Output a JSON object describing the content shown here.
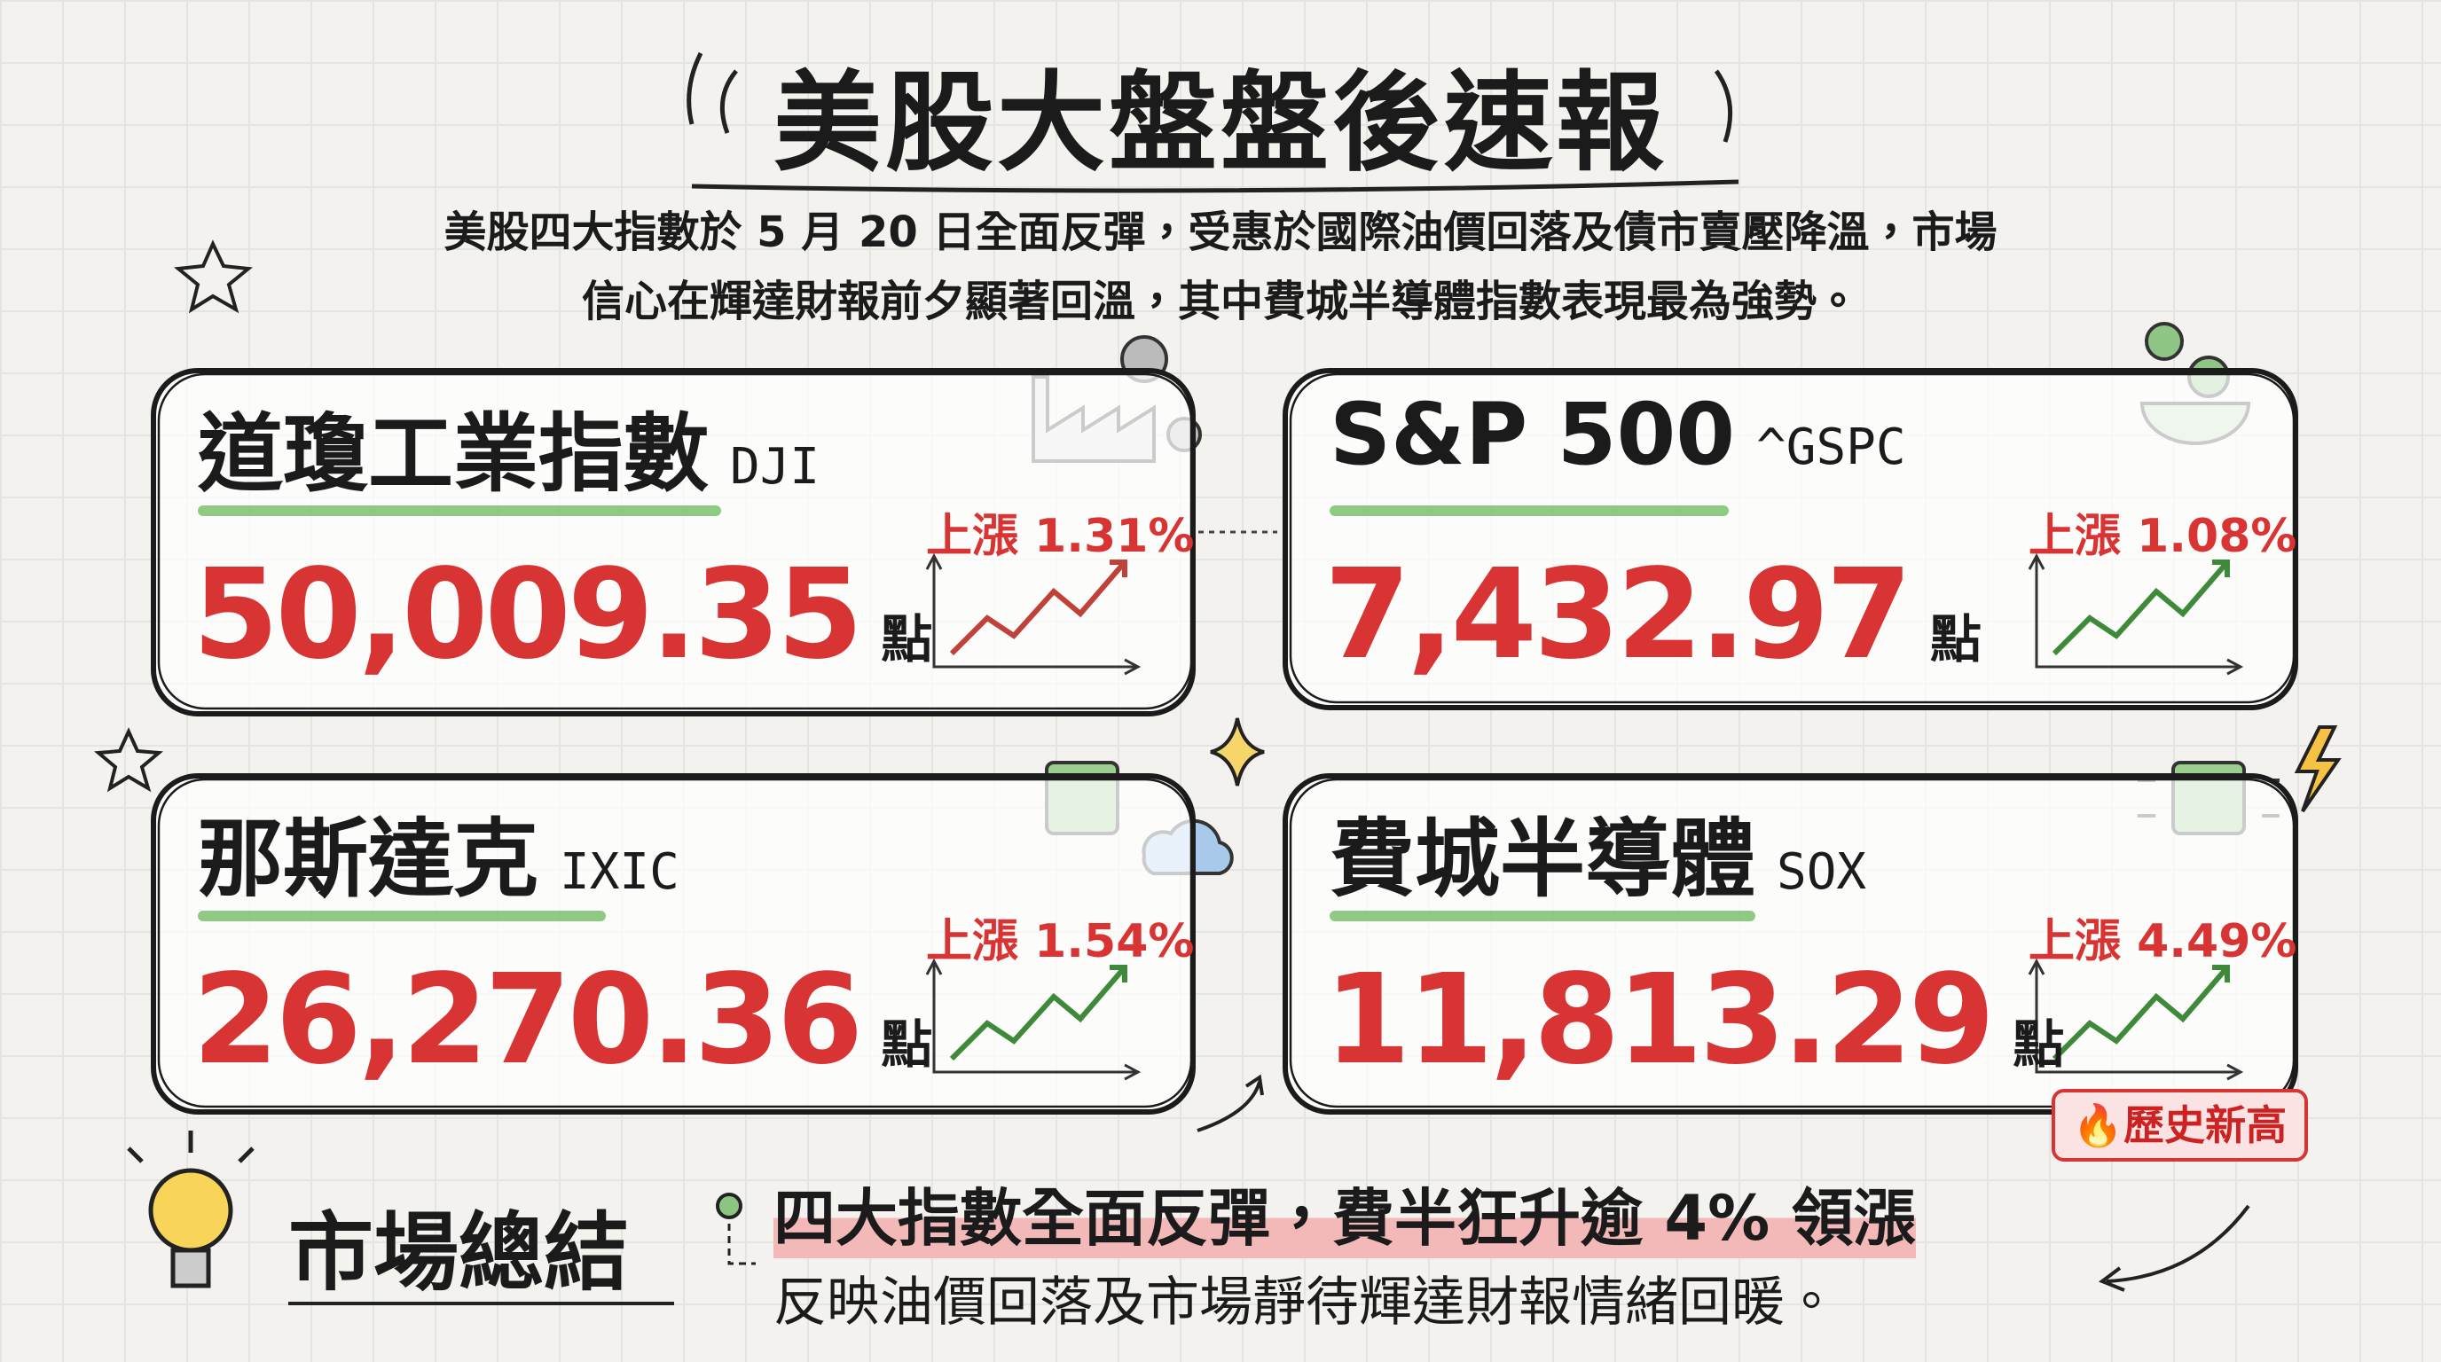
{
  "header": {
    "title": "美股大盤盤後速報",
    "intro": [
      "美股四大指數於 5 月 20 日全面反彈，受惠於國際油價回落及債市賣壓降溫，市場",
      "信心在輝達財報前夕顯著回溫，其中費城半導體指數表現最為強勢。"
    ]
  },
  "cards": [
    {
      "name": "道瓊工業指數",
      "code": "DJI",
      "value": "50,009.35",
      "unit": "點",
      "change": "上漲 1.31%"
    },
    {
      "name": "S&P 500",
      "code": "^GSPC",
      "value": "7,432.97",
      "unit": "點",
      "change": "上漲 1.08%"
    },
    {
      "name": "那斯達克",
      "code": "IXIC",
      "value": "26,270.36",
      "unit": "點",
      "change": "上漲 1.54%"
    },
    {
      "name": "費城半導體",
      "code": "SOX",
      "value": "11,813.29",
      "unit": "點",
      "change": "上漲 4.49%",
      "badge": "🔥歷史新高"
    }
  ],
  "summary": {
    "label": "市場總結",
    "headline": "四大指數全面反彈，費半狂升逾 4% 領漲",
    "detail": "反映油價回落及市場靜待輝達財報情緒回暖。"
  }
}
